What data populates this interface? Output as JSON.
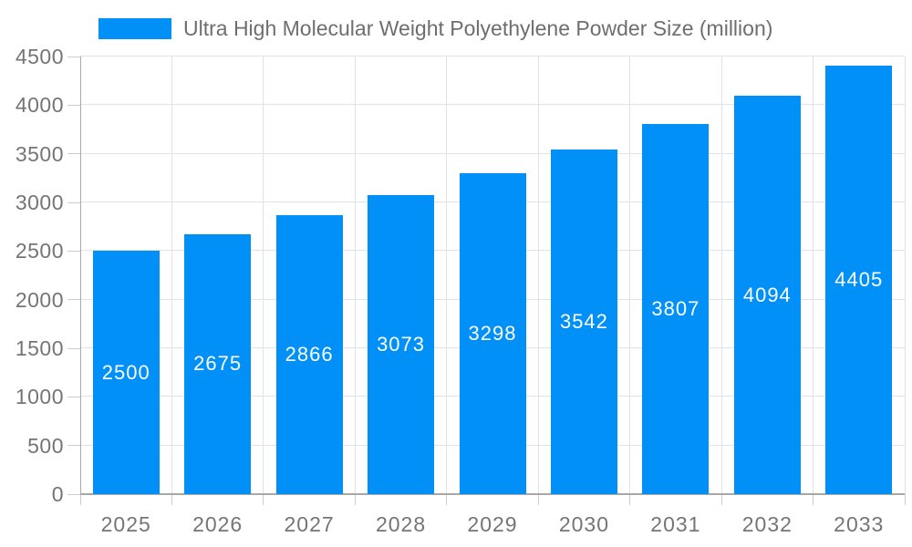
{
  "chart_data": {
    "type": "bar",
    "title": "Ultra High Molecular Weight Polyethylene Powder Size (million)",
    "categories": [
      "2025",
      "2026",
      "2027",
      "2028",
      "2029",
      "2030",
      "2031",
      "2032",
      "2033"
    ],
    "values": [
      2500,
      2675,
      2866,
      3073,
      3298,
      3542,
      3807,
      4094,
      4405
    ],
    "series": [
      {
        "name": "Ultra High Molecular Weight Polyethylene Powder Size (million)",
        "values": [
          2500,
          2675,
          2866,
          3073,
          3298,
          3542,
          3807,
          4094,
          4405
        ]
      }
    ],
    "xlabel": "",
    "ylabel": "",
    "ylim": [
      0,
      4500
    ],
    "y_ticks": [
      0,
      500,
      1000,
      1500,
      2000,
      2500,
      3000,
      3500,
      4000,
      4500
    ],
    "grid": "horizontal and vertical gridlines on",
    "legend_position": "top",
    "value_labels": "inside bars, centered, white",
    "colors": {
      "bar": "#0090f8",
      "value_label": "#ffffff",
      "axis_text": "#757575",
      "legend_text": "#6e6e6e",
      "gridline": "#e2e2e2",
      "axis_line": "#a8a8a8",
      "background": "#ffffff"
    }
  }
}
